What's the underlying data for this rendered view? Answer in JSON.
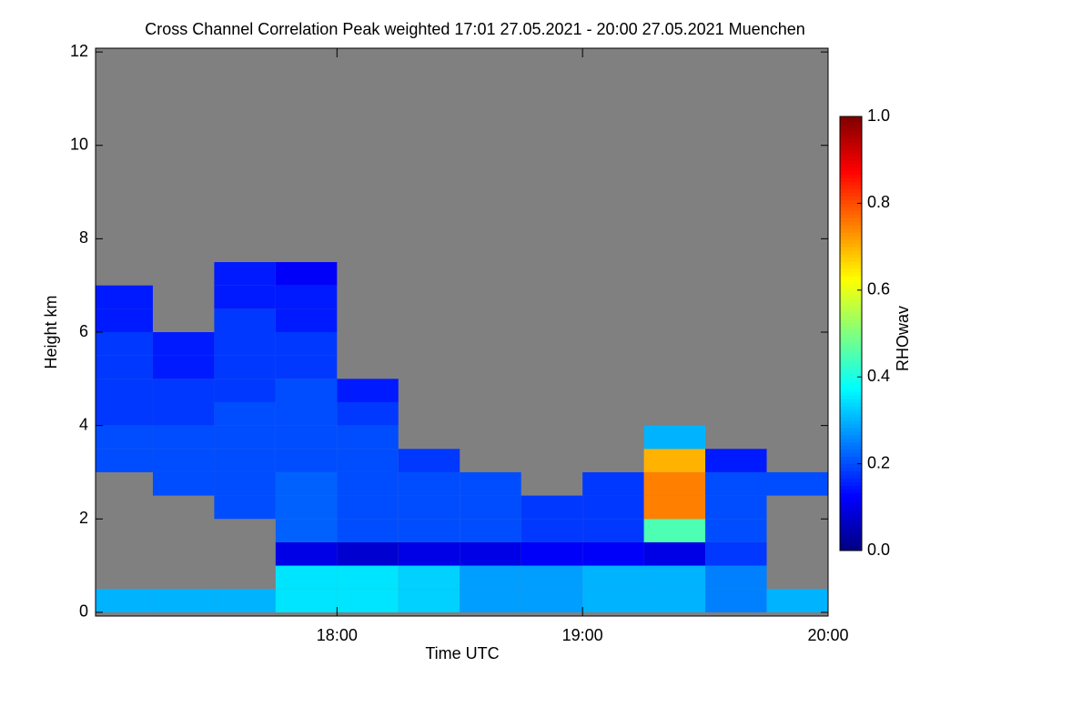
{
  "chart_data": {
    "type": "heatmap",
    "title": "Cross Channel Correlation Peak weighted   17:01 27.05.2021 - 20:00 27.05.2021 Muenchen",
    "xlabel": "Time UTC",
    "ylabel": "Height km",
    "colorbar_label": "RHOwav",
    "x_bins": [
      17.0167,
      17.25,
      17.5,
      17.75,
      18,
      18.25,
      18.5,
      18.75,
      19,
      19.25,
      19.5,
      19.75,
      20.0
    ],
    "y_bins": [
      0,
      0.5,
      1,
      1.5,
      2,
      2.5,
      3,
      3.5,
      4,
      4.5,
      5,
      5.5,
      6,
      6.5,
      7,
      7.5,
      8
    ],
    "z": [
      [
        0.3,
        null,
        null,
        null,
        null,
        null,
        0.2,
        0.2,
        0.18,
        0.18,
        0.18,
        0.18,
        0.15,
        0.15,
        null,
        null
      ],
      [
        0.3,
        null,
        null,
        null,
        null,
        0.2,
        0.2,
        0.2,
        0.18,
        0.18,
        0.15,
        0.15,
        null,
        null,
        null,
        null
      ],
      [
        0.3,
        null,
        null,
        null,
        0.2,
        0.2,
        0.2,
        0.2,
        0.2,
        0.18,
        0.18,
        0.18,
        0.18,
        0.15,
        0.15,
        null
      ],
      [
        0.35,
        0.35,
        0.1,
        0.22,
        0.22,
        0.22,
        0.2,
        0.2,
        0.2,
        0.2,
        0.18,
        0.18,
        0.15,
        0.15,
        0.12,
        null
      ],
      [
        0.35,
        0.35,
        0.08,
        0.2,
        0.2,
        0.2,
        0.2,
        0.2,
        0.18,
        0.15,
        null,
        null,
        null,
        null,
        null,
        null
      ],
      [
        0.33,
        0.33,
        0.1,
        0.2,
        0.2,
        0.2,
        0.18,
        null,
        null,
        null,
        null,
        null,
        null,
        null,
        null,
        null
      ],
      [
        0.28,
        0.28,
        0.1,
        0.2,
        0.2,
        0.2,
        null,
        null,
        null,
        null,
        null,
        null,
        null,
        null,
        null,
        null
      ],
      [
        0.28,
        0.28,
        0.12,
        0.18,
        0.18,
        null,
        null,
        null,
        null,
        null,
        null,
        null,
        null,
        null,
        null,
        null
      ],
      [
        0.3,
        0.3,
        0.12,
        0.18,
        0.18,
        0.18,
        null,
        null,
        null,
        null,
        null,
        null,
        null,
        null,
        null,
        null
      ],
      [
        0.3,
        0.3,
        0.1,
        0.45,
        0.75,
        0.75,
        0.7,
        0.3,
        null,
        null,
        null,
        null,
        null,
        null,
        null,
        null
      ],
      [
        0.25,
        0.25,
        0.18,
        0.2,
        0.2,
        0.2,
        0.15,
        null,
        null,
        null,
        null,
        null,
        null,
        null,
        null,
        null
      ],
      [
        0.3,
        null,
        null,
        null,
        null,
        0.2,
        null,
        null,
        null,
        null,
        null,
        null,
        null,
        null,
        null,
        null
      ]
    ],
    "xlim": [
      17.0167,
      20.0
    ],
    "xticks": [
      {
        "value": 18,
        "label": "18:00"
      },
      {
        "value": 19,
        "label": "19:00"
      },
      {
        "value": 20,
        "label": "20:00"
      }
    ],
    "ylim": [
      -0.08,
      12.08
    ],
    "yticks": [
      0,
      2,
      4,
      6,
      8,
      10,
      12
    ],
    "zlim": [
      0,
      1
    ],
    "zticks": [
      {
        "value": 0,
        "label": "0.0"
      },
      0.2,
      0.4,
      0.6,
      0.8,
      {
        "value": 1,
        "label": "1.0"
      }
    ],
    "missing_color": "#808080",
    "colormap": "jet"
  }
}
